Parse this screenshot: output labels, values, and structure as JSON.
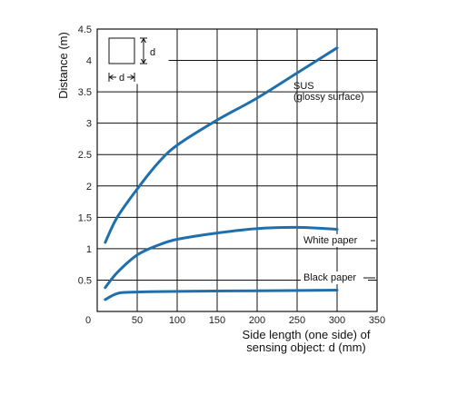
{
  "chart_data": {
    "type": "line",
    "ylabel": "Distance (m)",
    "xlabel_lines": [
      "Side length (one side) of",
      "sensing object: d (mm)"
    ],
    "xlim": [
      0,
      350
    ],
    "ylim": [
      0,
      4.5
    ],
    "x_ticks": [
      {
        "value": 0,
        "label": "0"
      },
      {
        "value": 50,
        "label": "50"
      },
      {
        "value": 100,
        "label": "100"
      },
      {
        "value": 150,
        "label": "150"
      },
      {
        "value": 200,
        "label": "200"
      },
      {
        "value": 250,
        "label": "250"
      },
      {
        "value": 300,
        "label": "300"
      },
      {
        "value": 350,
        "label": "350"
      }
    ],
    "y_ticks": [
      {
        "value": 0.5,
        "label": "0.5"
      },
      {
        "value": 1,
        "label": "1"
      },
      {
        "value": 1.5,
        "label": "1.5"
      },
      {
        "value": 2,
        "label": "2"
      },
      {
        "value": 2.5,
        "label": "2.5"
      },
      {
        "value": 3,
        "label": "3"
      },
      {
        "value": 3.5,
        "label": "3.5"
      },
      {
        "value": 4,
        "label": "4"
      },
      {
        "value": 4.5,
        "label": "4.5"
      }
    ],
    "grid": true,
    "series": [
      {
        "name": "SUS (glossy surface)",
        "label_lines": [
          "SUS",
          "(glossy surface)"
        ],
        "color": "#1f6fad",
        "x": [
          10,
          25,
          50,
          75,
          100,
          150,
          200,
          250,
          300
        ],
        "y": [
          1.1,
          1.5,
          1.95,
          2.35,
          2.65,
          3.05,
          3.4,
          3.8,
          4.2
        ]
      },
      {
        "name": "White paper",
        "label_lines": [
          "White paper"
        ],
        "color": "#1f6fad",
        "x": [
          10,
          25,
          50,
          75,
          100,
          150,
          200,
          250,
          300
        ],
        "y": [
          0.38,
          0.62,
          0.9,
          1.05,
          1.15,
          1.25,
          1.32,
          1.34,
          1.31
        ]
      },
      {
        "name": "Black paper",
        "label_lines": [
          "Black paper"
        ],
        "color": "#1f6fad",
        "x": [
          10,
          20,
          30,
          50,
          100,
          200,
          300
        ],
        "y": [
          0.19,
          0.26,
          0.3,
          0.31,
          0.32,
          0.33,
          0.34
        ]
      }
    ],
    "inset": {
      "dimension_label": "d"
    }
  }
}
